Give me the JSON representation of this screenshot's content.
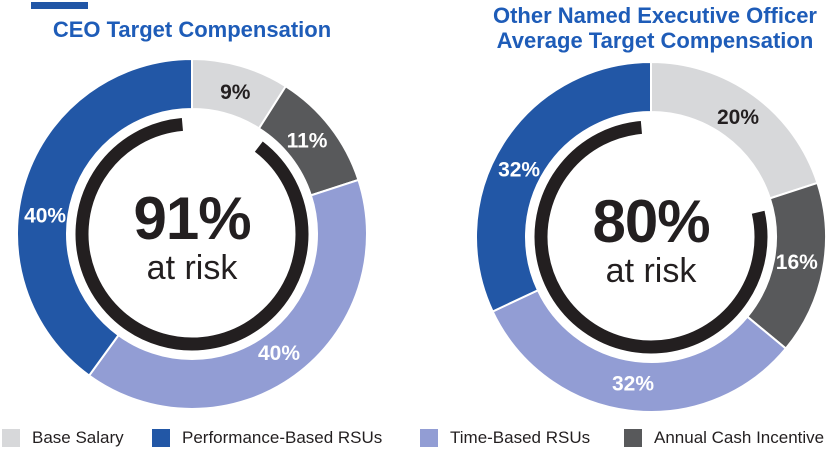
{
  "page": {
    "background": "#ffffff"
  },
  "colors": {
    "title_blue": "#1e5cb8",
    "performance_rsu_blue": "#2257a6",
    "time_rsu_purple": "#929dd4",
    "annual_cash_gray": "#58595b",
    "base_salary_gray": "#d7d8da",
    "arc_black": "#231f20"
  },
  "chart_data": [
    {
      "type": "pie",
      "variant": "donut",
      "title": "CEO Target Compensation",
      "title_lines": [
        "CEO Target Compensation"
      ],
      "center_value": "91%",
      "center_caption": "at risk",
      "at_risk_percent": 91,
      "start_angle_deg": 0,
      "direction": "clockwise",
      "segments": [
        {
          "label": "Base Salary",
          "value": 9,
          "color": "#d7d8da",
          "label_color": "#231f20",
          "label_angle_deg": 17
        },
        {
          "label": "Annual Cash Incentive",
          "value": 11,
          "color": "#58595b",
          "label_color": "#ffffff",
          "label_angle_deg": 51
        },
        {
          "label": "Time-Based RSUs",
          "value": 40,
          "color": "#929dd4",
          "label_color": "#ffffff",
          "label_angle_deg": 144
        },
        {
          "label": "Performance-Based RSUs",
          "value": 40,
          "color": "#2257a6",
          "label_color": "#ffffff",
          "label_angle_deg": 277
        }
      ]
    },
    {
      "type": "pie",
      "variant": "donut",
      "title": "Other Named Executive Officer Average Target Compensation",
      "title_lines": [
        "Other Named Executive Officer",
        "Average Target Compensation"
      ],
      "center_value": "80%",
      "center_caption": "at risk",
      "at_risk_percent": 80,
      "start_angle_deg": 0,
      "direction": "clockwise",
      "segments": [
        {
          "label": "Base Salary",
          "value": 20,
          "color": "#d7d8da",
          "label_color": "#231f20",
          "label_angle_deg": 36
        },
        {
          "label": "Annual Cash Incentive",
          "value": 16,
          "color": "#58595b",
          "label_color": "#ffffff",
          "label_angle_deg": 100
        },
        {
          "label": "Time-Based RSUs",
          "value": 32,
          "color": "#929dd4",
          "label_color": "#ffffff",
          "label_angle_deg": 187
        },
        {
          "label": "Performance-Based RSUs",
          "value": 32,
          "color": "#2257a6",
          "label_color": "#ffffff",
          "label_angle_deg": 297
        }
      ]
    }
  ],
  "legend": {
    "items": [
      {
        "label": "Base Salary",
        "color": "#d7d8da"
      },
      {
        "label": "Performance-Based RSUs",
        "color": "#2257a6"
      },
      {
        "label": "Time-Based RSUs",
        "color": "#929dd4"
      },
      {
        "label": "Annual Cash Incentive",
        "color": "#58595b"
      }
    ]
  }
}
